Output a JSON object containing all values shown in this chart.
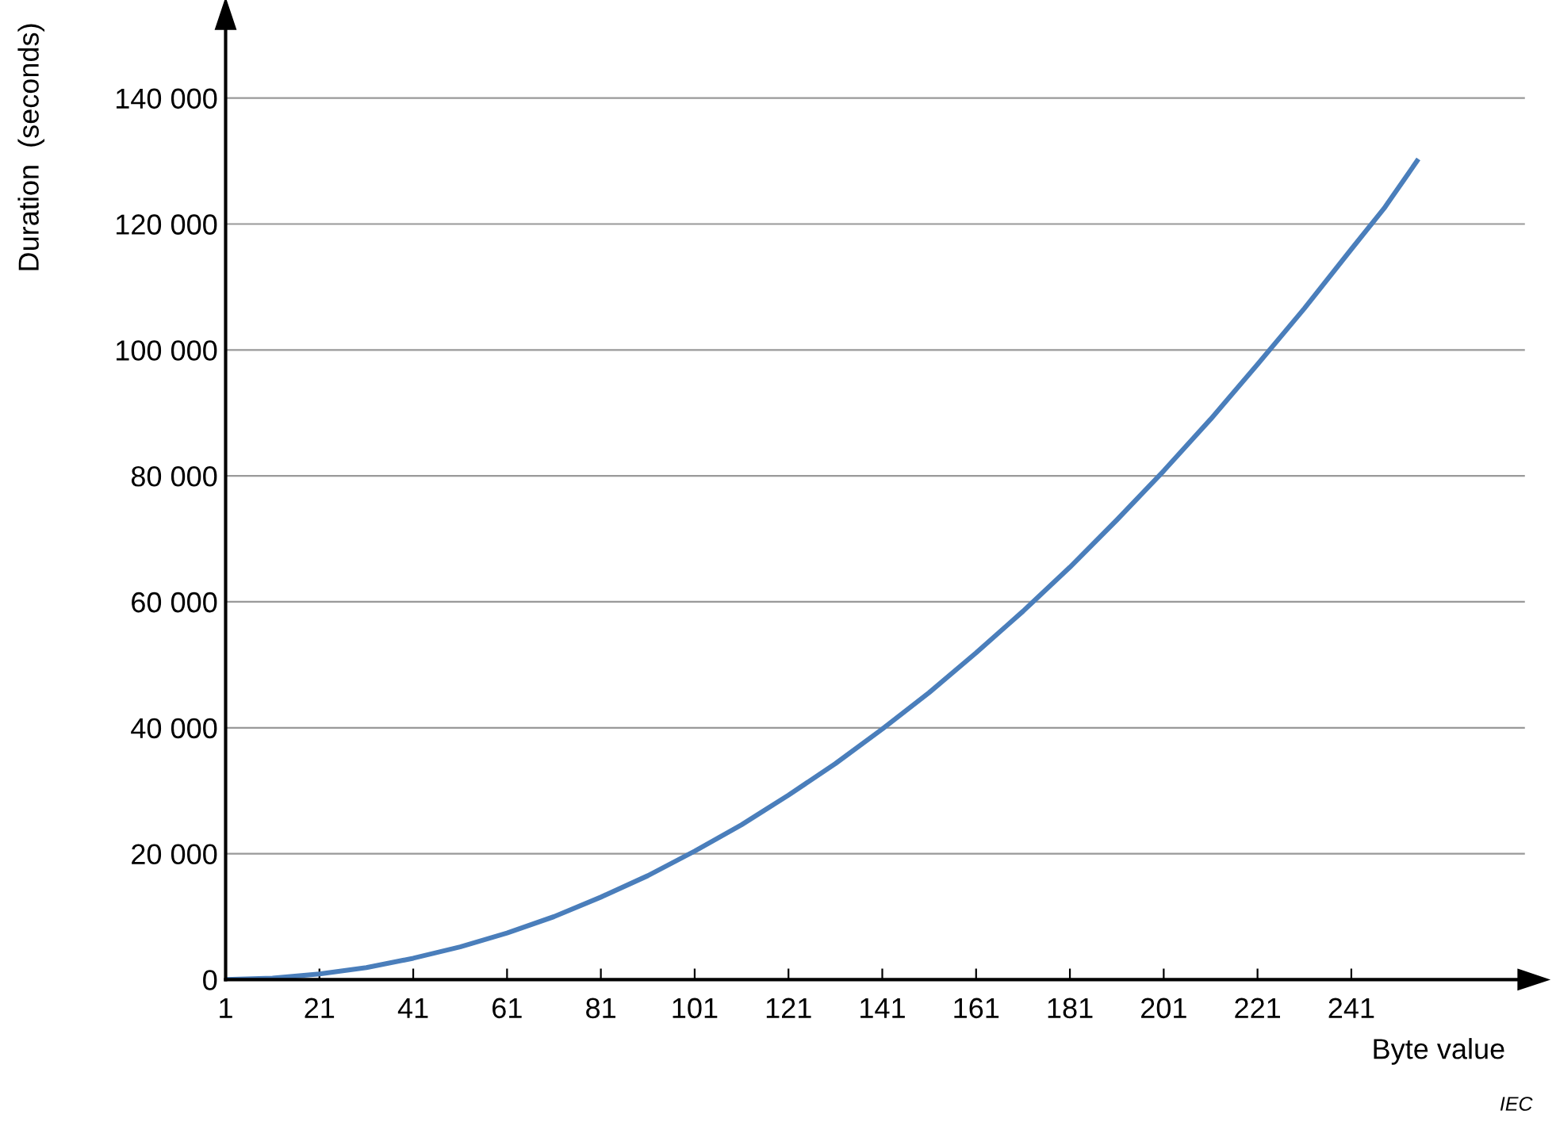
{
  "chart_data": {
    "type": "line",
    "xlabel": "Byte value",
    "ylabel": "Duration  (seconds)",
    "x": [
      1,
      11,
      21,
      31,
      41,
      51,
      61,
      71,
      81,
      91,
      101,
      111,
      121,
      131,
      141,
      151,
      161,
      171,
      181,
      191,
      201,
      211,
      221,
      231,
      241,
      248,
      255
    ],
    "series": [
      {
        "color": "#4a7ebb",
        "values": [
          0,
          240,
          900,
          1900,
          3400,
          5200,
          7400,
          10000,
          13100,
          16500,
          20400,
          24600,
          29300,
          34300,
          39800,
          45600,
          51900,
          58500,
          65500,
          73000,
          80800,
          89000,
          97700,
          106600,
          116000,
          122500,
          130000
        ]
      }
    ],
    "xlim": [
      1,
      278
    ],
    "ylim": [
      0,
      152000
    ],
    "xticks": [
      1,
      21,
      41,
      61,
      81,
      101,
      121,
      141,
      161,
      181,
      201,
      221,
      241
    ],
    "yticks": [
      0,
      {
        "value": 20000,
        "label": "20 000"
      },
      {
        "value": 40000,
        "label": "40 000"
      },
      {
        "value": 60000,
        "label": "60 000"
      },
      {
        "value": 80000,
        "label": "80 000"
      },
      {
        "value": 100000,
        "label": "100 000"
      },
      {
        "value": 120000,
        "label": "120 000"
      },
      {
        "value": 140000,
        "label": "140 000"
      }
    ],
    "grid": "y",
    "annotations": [
      "IEC"
    ]
  }
}
